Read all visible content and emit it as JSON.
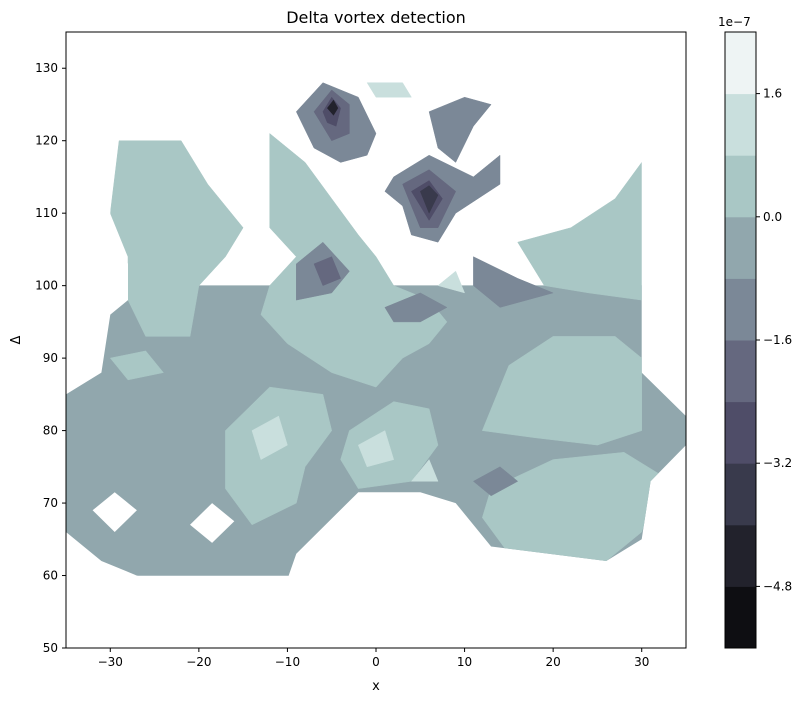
{
  "chart_data": {
    "type": "contourf",
    "title": "Delta vortex detection",
    "xlabel": "x",
    "ylabel": "Δ",
    "xlim": [
      -35,
      35
    ],
    "ylim": [
      50,
      135
    ],
    "x_ticks": [
      -30,
      -20,
      -10,
      0,
      10,
      20,
      30
    ],
    "y_ticks": [
      50,
      60,
      70,
      80,
      90,
      100,
      110,
      120,
      130
    ],
    "x_tick_labels": [
      "−30",
      "−20",
      "−10",
      "0",
      "10",
      "20",
      "30"
    ],
    "y_tick_labels": [
      "50",
      "60",
      "70",
      "80",
      "90",
      "100",
      "110",
      "120",
      "130"
    ],
    "colormap": "bone",
    "colorbar": {
      "exponent_label": "1e−7",
      "tick_values": [
        1.6,
        0.0,
        -1.6,
        -3.2,
        -4.8
      ],
      "tick_labels": [
        "1.6",
        "0.0",
        "−1.6",
        "−3.2",
        "−4.8"
      ],
      "range": [
        -5.6,
        2.4
      ],
      "level_colors": [
        "#0e0e12",
        "#22222c",
        "#393a4c",
        "#4f4d68",
        "#65687f",
        "#7b8897",
        "#91a7ad",
        "#a9c7c5",
        "#c9dfdd",
        "#eef4f4"
      ]
    },
    "domain_vertices": [
      [
        -30,
        125
      ],
      [
        -28,
        127
      ],
      [
        11,
        129
      ],
      [
        13,
        127
      ],
      [
        20,
        127
      ],
      [
        26,
        126
      ],
      [
        30,
        123
      ],
      [
        30,
        88
      ],
      [
        35,
        82
      ],
      [
        35,
        78
      ],
      [
        31,
        73
      ],
      [
        30,
        65
      ],
      [
        26,
        62
      ],
      [
        13,
        64
      ],
      [
        9,
        70
      ],
      [
        5,
        71.5
      ],
      [
        -2,
        71.5
      ],
      [
        -9,
        63
      ],
      [
        -10,
        59.5
      ],
      [
        -26,
        59.5
      ],
      [
        -31,
        62
      ],
      [
        -35,
        66
      ],
      [
        -35,
        85
      ],
      [
        -31,
        88
      ],
      [
        -30,
        96
      ],
      [
        -28,
        98
      ],
      [
        -28,
        103
      ],
      [
        -30,
        108
      ],
      [
        -30,
        115
      ],
      [
        -31,
        123
      ]
    ],
    "holes": [
      [
        [
          -32,
          69
        ],
        [
          -29.5,
          71.5
        ],
        [
          -27,
          69
        ],
        [
          -29.5,
          66
        ]
      ],
      [
        [
          -21,
          67
        ],
        [
          -18.5,
          70
        ],
        [
          -16,
          67.5
        ],
        [
          -18.5,
          64.5
        ]
      ]
    ],
    "regions": [
      {
        "level": 6,
        "points": [
          [
            -35,
            100
          ],
          [
            0,
            100
          ],
          [
            35,
            100
          ],
          [
            35,
            60
          ],
          [
            -35,
            60
          ]
        ]
      },
      {
        "level": 7,
        "points": [
          [
            -29,
            120
          ],
          [
            -22,
            120
          ],
          [
            -19,
            114
          ],
          [
            -15,
            108
          ],
          [
            -17,
            104
          ],
          [
            -20,
            100
          ],
          [
            -21,
            93
          ],
          [
            -26,
            93
          ],
          [
            -28,
            98
          ],
          [
            -28,
            104
          ],
          [
            -30,
            110
          ]
        ]
      },
      {
        "level": 7,
        "points": [
          [
            -12,
            121
          ],
          [
            -8,
            117
          ],
          [
            -5,
            112
          ],
          [
            -2,
            107
          ],
          [
            0,
            104
          ],
          [
            2,
            100
          ],
          [
            6,
            98
          ],
          [
            8,
            95
          ],
          [
            6,
            92
          ],
          [
            3,
            90
          ],
          [
            0,
            86
          ],
          [
            -5,
            88
          ],
          [
            -10,
            92
          ],
          [
            -13,
            96
          ],
          [
            -12,
            100
          ],
          [
            -9,
            104
          ],
          [
            -12,
            108
          ],
          [
            -12,
            115
          ]
        ]
      },
      {
        "level": 7,
        "points": [
          [
            16,
            106
          ],
          [
            22,
            108
          ],
          [
            27,
            112
          ],
          [
            30,
            117
          ],
          [
            30,
            98
          ],
          [
            24,
            99
          ],
          [
            19,
            100
          ]
        ]
      },
      {
        "level": 7,
        "points": [
          [
            15,
            89
          ],
          [
            20,
            93
          ],
          [
            27,
            93
          ],
          [
            30,
            90
          ],
          [
            30,
            80
          ],
          [
            25,
            78
          ],
          [
            18,
            79
          ],
          [
            12,
            80
          ]
        ]
      },
      {
        "level": 7,
        "points": [
          [
            13,
            72
          ],
          [
            20,
            76
          ],
          [
            28,
            77
          ],
          [
            32,
            74
          ],
          [
            30,
            66
          ],
          [
            26,
            62
          ],
          [
            15,
            63
          ],
          [
            12,
            68
          ]
        ]
      },
      {
        "level": 7,
        "points": [
          [
            -17,
            80
          ],
          [
            -12,
            86
          ],
          [
            -6,
            85
          ],
          [
            -5,
            80
          ],
          [
            -8,
            75
          ],
          [
            -9,
            70
          ],
          [
            -14,
            67
          ],
          [
            -17,
            72
          ]
        ]
      },
      {
        "level": 7,
        "points": [
          [
            -3,
            80
          ],
          [
            2,
            84
          ],
          [
            6,
            83
          ],
          [
            7,
            78
          ],
          [
            4,
            73
          ],
          [
            -2,
            72
          ],
          [
            -4,
            76
          ]
        ]
      },
      {
        "level": 7,
        "points": [
          [
            -30,
            90
          ],
          [
            -26,
            91
          ],
          [
            -24,
            88
          ],
          [
            -28,
            87
          ]
        ]
      },
      {
        "level": 8,
        "points": [
          [
            -14,
            80
          ],
          [
            -11,
            82
          ],
          [
            -10,
            78
          ],
          [
            -13,
            76
          ]
        ]
      },
      {
        "level": 8,
        "points": [
          [
            -2,
            78
          ],
          [
            1,
            80
          ],
          [
            2,
            76
          ],
          [
            -1,
            75
          ]
        ]
      },
      {
        "level": 8,
        "points": [
          [
            4,
            73
          ],
          [
            6,
            76
          ],
          [
            7,
            73
          ]
        ]
      },
      {
        "level": 8,
        "points": [
          [
            -1,
            128
          ],
          [
            3,
            128
          ],
          [
            4,
            126
          ],
          [
            0,
            126
          ]
        ]
      },
      {
        "level": 8,
        "points": [
          [
            7,
            100
          ],
          [
            9,
            102
          ],
          [
            10,
            99
          ]
        ]
      },
      {
        "level": 5,
        "points": [
          [
            -9,
            124
          ],
          [
            -6,
            128
          ],
          [
            -2,
            126
          ],
          [
            0,
            121
          ],
          [
            -1,
            118
          ],
          [
            -4,
            117
          ],
          [
            -7,
            119
          ]
        ]
      },
      {
        "level": 4,
        "points": [
          [
            -7,
            124
          ],
          [
            -5,
            127
          ],
          [
            -3,
            125
          ],
          [
            -3,
            121
          ],
          [
            -5,
            120
          ],
          [
            -6,
            122
          ]
        ]
      },
      {
        "level": 3,
        "points": [
          [
            -6,
            124
          ],
          [
            -5,
            126
          ],
          [
            -4,
            124.5
          ],
          [
            -4.5,
            122
          ],
          [
            -5.5,
            122.5
          ]
        ]
      },
      {
        "level": 1,
        "points": [
          [
            -5.5,
            124.5
          ],
          [
            -4.8,
            125.6
          ],
          [
            -4.3,
            124.5
          ],
          [
            -4.8,
            123.5
          ]
        ]
      },
      {
        "level": 5,
        "points": [
          [
            2,
            115
          ],
          [
            6,
            118
          ],
          [
            11,
            115
          ],
          [
            14,
            118
          ],
          [
            14,
            114
          ],
          [
            9,
            110
          ],
          [
            7,
            106
          ],
          [
            4,
            107
          ],
          [
            3,
            111
          ],
          [
            1,
            113
          ]
        ]
      },
      {
        "level": 4,
        "points": [
          [
            3,
            114
          ],
          [
            6,
            116
          ],
          [
            9,
            113
          ],
          [
            7,
            108
          ],
          [
            5,
            108
          ],
          [
            4,
            111
          ]
        ]
      },
      {
        "level": 3,
        "points": [
          [
            4,
            113
          ],
          [
            6,
            114.5
          ],
          [
            7.5,
            112
          ],
          [
            6,
            109
          ],
          [
            5,
            111
          ]
        ]
      },
      {
        "level": 2,
        "points": [
          [
            5,
            113
          ],
          [
            6,
            113.8
          ],
          [
            7,
            112.5
          ],
          [
            6,
            110
          ]
        ]
      },
      {
        "level": 5,
        "points": [
          [
            6,
            124
          ],
          [
            10,
            126
          ],
          [
            13,
            125
          ],
          [
            11,
            122
          ],
          [
            9,
            117
          ],
          [
            7,
            119
          ]
        ]
      },
      {
        "level": 5,
        "points": [
          [
            -9,
            103
          ],
          [
            -6,
            106
          ],
          [
            -3,
            102
          ],
          [
            -5,
            99
          ],
          [
            -9,
            98
          ]
        ]
      },
      {
        "level": 4,
        "points": [
          [
            -7,
            103
          ],
          [
            -5,
            104
          ],
          [
            -4,
            101
          ],
          [
            -6,
            100
          ]
        ]
      },
      {
        "level": 5,
        "points": [
          [
            1,
            97
          ],
          [
            5,
            99
          ],
          [
            8,
            97
          ],
          [
            5,
            95
          ],
          [
            2,
            95
          ]
        ]
      },
      {
        "level": 5,
        "points": [
          [
            11,
            73
          ],
          [
            14,
            75
          ],
          [
            16,
            73
          ],
          [
            13,
            71
          ]
        ]
      },
      {
        "level": 5,
        "points": [
          [
            11,
            104
          ],
          [
            16,
            101
          ],
          [
            20,
            99
          ],
          [
            14,
            97
          ],
          [
            11,
            100
          ]
        ]
      }
    ]
  }
}
